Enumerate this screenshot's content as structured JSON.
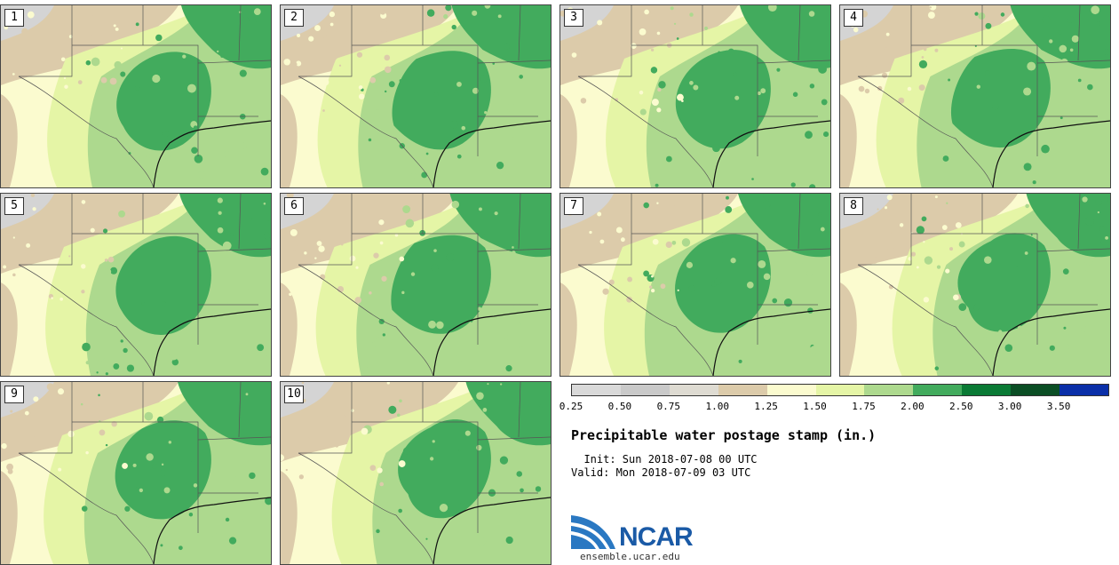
{
  "panels": [
    {
      "label": "1"
    },
    {
      "label": "2"
    },
    {
      "label": "3"
    },
    {
      "label": "4"
    },
    {
      "label": "5"
    },
    {
      "label": "6"
    },
    {
      "label": "7"
    },
    {
      "label": "8"
    },
    {
      "label": "9"
    },
    {
      "label": "10"
    }
  ],
  "colorbar": {
    "colors": [
      "#d9d9d9",
      "#c9c9c9",
      "#dedbd2",
      "#dccbaa",
      "#fbfbcf",
      "#e5f5a6",
      "#add98e",
      "#42ab5d",
      "#0a7a35",
      "#0b4e25",
      "#0a2fa8"
    ],
    "ticks": [
      "0.25",
      "0.50",
      "0.75",
      "1.00",
      "1.25",
      "1.50",
      "1.75",
      "2.00",
      "2.50",
      "3.00",
      "3.50"
    ]
  },
  "title": "Precipitable water postage stamp (in.)",
  "init_line": "  Init: Sun 2018-07-08 00 UTC",
  "valid_line": "Valid: Mon 2018-07-09 03 UTC",
  "logo": {
    "text": "NCAR",
    "site": "ensemble.ucar.edu"
  }
}
